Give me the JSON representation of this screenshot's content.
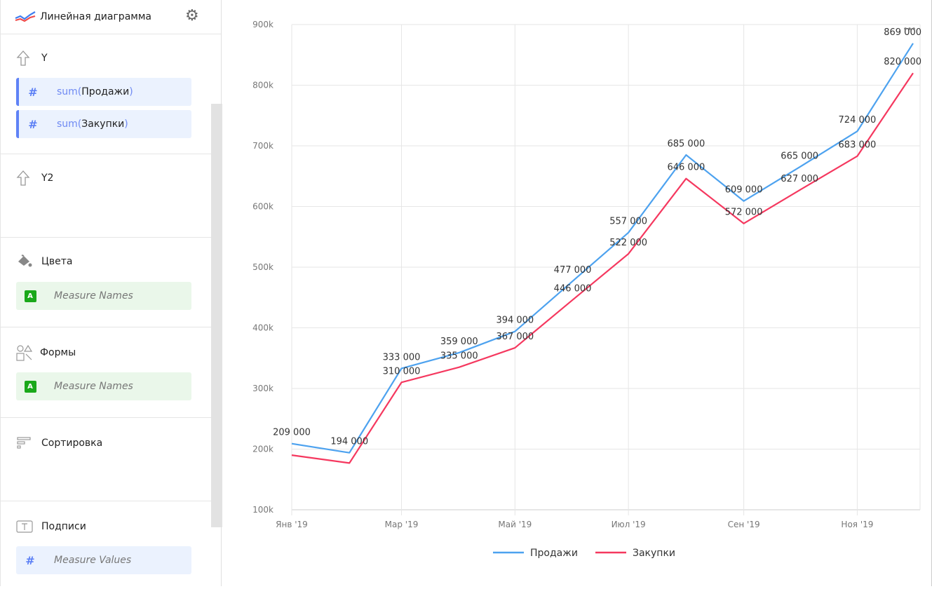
{
  "sidebar": {
    "chart_type": "Линейная диаграмма",
    "chart_type_icon": "line-chart-icon",
    "sections": {
      "y": {
        "title": "Y",
        "icon": "arrow-up-icon",
        "fields": [
          {
            "func": "sum(",
            "name": "Продажи",
            "close": ")"
          },
          {
            "func": "sum(",
            "name": "Закупки",
            "close": ")"
          }
        ]
      },
      "y2": {
        "title": "Y2",
        "icon": "arrow-up-icon"
      },
      "colors": {
        "title": "Цвета",
        "icon": "paint-bucket-icon",
        "field": "Measure Names",
        "badge": "A"
      },
      "shapes": {
        "title": "Формы",
        "icon": "shapes-icon",
        "field": "Measure Names",
        "badge": "A"
      },
      "sort": {
        "title": "Сортировка",
        "icon": "sort-icon"
      },
      "labels": {
        "title": "Подписи",
        "icon": "text-icon",
        "field": "Measure Values"
      }
    }
  },
  "chart_data": {
    "type": "line",
    "x": [
      "2019-01-01",
      "2019-02-01",
      "2019-03-01",
      "2019-04-01",
      "2019-05-01",
      "2019-06-01",
      "2019-07-01",
      "2019-08-01",
      "2019-09-01",
      "2019-10-01",
      "2019-11-01",
      "2019-12-01"
    ],
    "x_ticks": [
      {
        "date": "2019-01-01",
        "label": "Янв '19"
      },
      {
        "date": "2019-03-01",
        "label": "Мар '19"
      },
      {
        "date": "2019-05-01",
        "label": "Май '19"
      },
      {
        "date": "2019-07-01",
        "label": "Июл '19"
      },
      {
        "date": "2019-09-01",
        "label": "Сен '19"
      },
      {
        "date": "2019-11-01",
        "label": "Ноя '19"
      }
    ],
    "y_ticks": [
      "100k",
      "200k",
      "300k",
      "400k",
      "500k",
      "600k",
      "700k",
      "800k",
      "900k"
    ],
    "ylim": [
      100000,
      900000
    ],
    "grid": true,
    "legend_position": "bottom",
    "series": [
      {
        "name": "Продажи",
        "color": "#4da2ef",
        "values": [
          209000,
          194000,
          333000,
          359000,
          394000,
          477000,
          557000,
          685000,
          609000,
          665000,
          724000,
          869000
        ],
        "labels": [
          "209 000",
          "194 000",
          "333 000",
          "359 000",
          "394 000",
          "477 000",
          "557 000",
          "685 000",
          "609 000",
          "665 000",
          "724 000",
          "869 000"
        ]
      },
      {
        "name": "Закупки",
        "color": "#f5385f",
        "values": [
          190000,
          177000,
          310000,
          335000,
          367000,
          446000,
          522000,
          646000,
          572000,
          627000,
          683000,
          820000
        ],
        "labels": [
          null,
          null,
          "310 000",
          "335 000",
          "367 000",
          "446 000",
          "522 000",
          "646 000",
          "572 000",
          "627 000",
          "683 000",
          "820 000"
        ]
      }
    ]
  }
}
